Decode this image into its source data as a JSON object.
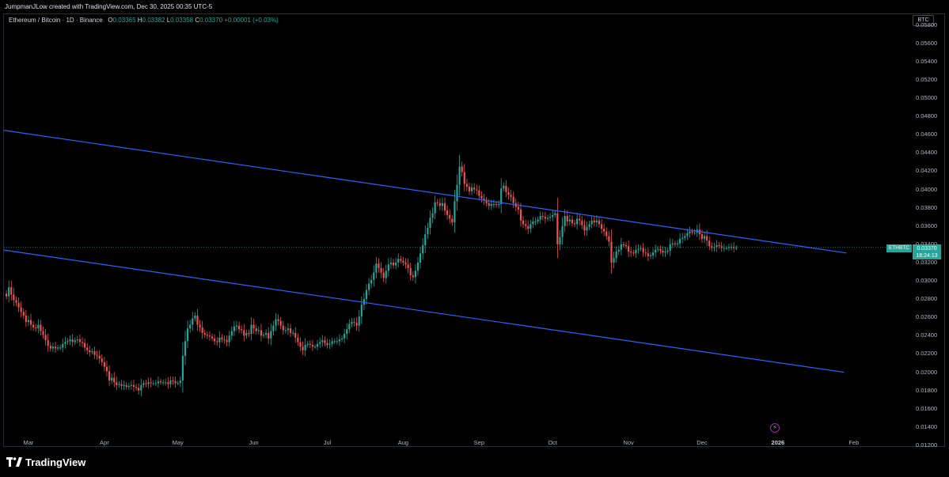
{
  "header": {
    "attribution": "JumpmanJLow created with TradingView.com, Dec 30, 2025 00:35 UTC-5"
  },
  "legend": {
    "symbol": "Ethereum / Bitcoin · 1D · Binance",
    "o_label": "O",
    "o": "0.03365",
    "h_label": "H",
    "h": "0.03382",
    "l_label": "L",
    "l": "0.03358",
    "c_label": "C",
    "c": "0.03370",
    "change": "+0.00001 (+0.03%)"
  },
  "currency_button": "BTC",
  "price_tag": {
    "symbol": "ETHBTC",
    "price": "0.03370",
    "countdown": "18:24:13"
  },
  "brand": {
    "name": "TradingView"
  },
  "colors": {
    "up": "#26a69a",
    "down": "#ef5350",
    "trendline": "#2962ff",
    "background": "#000000",
    "axis_text": "#b2b5be"
  },
  "icons": {
    "bolt": "lightning-icon",
    "logo": "tradingview-logo-icon"
  },
  "chart_data": {
    "type": "candlestick",
    "title": "Ethereum / Bitcoin · 1D · Binance",
    "ylim": [
      0.012,
      0.059
    ],
    "y_ticks": [
      "0.05800",
      "0.05600",
      "0.05400",
      "0.05200",
      "0.05000",
      "0.04800",
      "0.04600",
      "0.04400",
      "0.04200",
      "0.04000",
      "0.03800",
      "0.03600",
      "0.03400",
      "0.03200",
      "0.03000",
      "0.02800",
      "0.02600",
      "0.02400",
      "0.02200",
      "0.02000",
      "0.01800",
      "0.01600",
      "0.01400",
      "0.01200"
    ],
    "x_range": [
      "2025-02-19",
      "2026-02-24"
    ],
    "x_ticks": [
      {
        "label": "Mar",
        "date": "2025-03-01"
      },
      {
        "label": "Apr",
        "date": "2025-04-01"
      },
      {
        "label": "May",
        "date": "2025-05-01"
      },
      {
        "label": "Jun",
        "date": "2025-06-01"
      },
      {
        "label": "Jul",
        "date": "2025-07-01"
      },
      {
        "label": "Aug",
        "date": "2025-08-01"
      },
      {
        "label": "Sep",
        "date": "2025-09-01"
      },
      {
        "label": "Oct",
        "date": "2025-10-01"
      },
      {
        "label": "Nov",
        "date": "2025-11-01"
      },
      {
        "label": "Dec",
        "date": "2025-12-01"
      },
      {
        "label": "2026",
        "date": "2026-01-01",
        "bold": true
      },
      {
        "label": "Feb",
        "date": "2026-02-01"
      }
    ],
    "grid": false,
    "last_price": 0.0337,
    "candles": {
      "start_date": "2025-02-20",
      "interval": "1D",
      "close": [
        0.0283,
        0.0293,
        0.0285,
        0.0279,
        0.0276,
        0.0271,
        0.0266,
        0.0262,
        0.0255,
        0.0257,
        0.0252,
        0.0249,
        0.0248,
        0.0252,
        0.0245,
        0.0241,
        0.0235,
        0.0229,
        0.0226,
        0.0228,
        0.0226,
        0.0227,
        0.0227,
        0.0231,
        0.0233,
        0.0234,
        0.0236,
        0.0233,
        0.0235,
        0.0236,
        0.0233,
        0.0232,
        0.0227,
        0.0224,
        0.0222,
        0.0223,
        0.0219,
        0.0218,
        0.0215,
        0.0211,
        0.0206,
        0.0201,
        0.0191,
        0.0194,
        0.0189,
        0.0186,
        0.0187,
        0.0185,
        0.0186,
        0.0184,
        0.0185,
        0.0186,
        0.0184,
        0.0183,
        0.018,
        0.0186,
        0.0188,
        0.0187,
        0.0189,
        0.0188,
        0.0188,
        0.0188,
        0.019,
        0.0189,
        0.0189,
        0.0189,
        0.0187,
        0.0191,
        0.019,
        0.0188,
        0.0188,
        0.0191,
        0.0218,
        0.0234,
        0.0248,
        0.0252,
        0.0259,
        0.0262,
        0.0252,
        0.0249,
        0.0243,
        0.0241,
        0.024,
        0.0239,
        0.0237,
        0.0234,
        0.0233,
        0.0238,
        0.0236,
        0.0235,
        0.0233,
        0.024,
        0.0245,
        0.025,
        0.0251,
        0.0247,
        0.0246,
        0.024,
        0.0243,
        0.0242,
        0.0252,
        0.0248,
        0.0245,
        0.0246,
        0.024,
        0.0241,
        0.0243,
        0.0237,
        0.0245,
        0.0251,
        0.0258,
        0.0256,
        0.0251,
        0.0246,
        0.0246,
        0.0248,
        0.0243,
        0.0243,
        0.0238,
        0.0233,
        0.0228,
        0.0224,
        0.023,
        0.0231,
        0.023,
        0.0228,
        0.0228,
        0.0231,
        0.0233,
        0.0235,
        0.0232,
        0.023,
        0.0231,
        0.0234,
        0.0234,
        0.0234,
        0.0236,
        0.0237,
        0.0242,
        0.0247,
        0.0253,
        0.0255,
        0.0254,
        0.0251,
        0.0261,
        0.0274,
        0.028,
        0.029,
        0.0297,
        0.0301,
        0.0309,
        0.0319,
        0.0314,
        0.0309,
        0.0303,
        0.0311,
        0.0318,
        0.032,
        0.0317,
        0.032,
        0.0324,
        0.0322,
        0.032,
        0.0318,
        0.0314,
        0.0306,
        0.0304,
        0.0311,
        0.032,
        0.033,
        0.0339,
        0.0351,
        0.0358,
        0.0369,
        0.0374,
        0.0386,
        0.0385,
        0.0382,
        0.0385,
        0.0377,
        0.0372,
        0.0368,
        0.0364,
        0.0387,
        0.0405,
        0.0425,
        0.0419,
        0.0406,
        0.0403,
        0.0398,
        0.0402,
        0.04,
        0.0399,
        0.0393,
        0.039,
        0.0388,
        0.0385,
        0.0382,
        0.0384,
        0.0384,
        0.0383,
        0.0384,
        0.0401,
        0.0404,
        0.0397,
        0.0394,
        0.0392,
        0.0385,
        0.0381,
        0.0378,
        0.0366,
        0.0362,
        0.036,
        0.0357,
        0.0362,
        0.0365,
        0.0365,
        0.0367,
        0.0371,
        0.037,
        0.0368,
        0.0369,
        0.037,
        0.0372,
        0.0374,
        0.034,
        0.0348,
        0.036,
        0.0371,
        0.0365,
        0.0367,
        0.0363,
        0.0362,
        0.0368,
        0.0366,
        0.0361,
        0.0355,
        0.0359,
        0.0362,
        0.0366,
        0.0364,
        0.0366,
        0.0362,
        0.0357,
        0.0354,
        0.0349,
        0.0343,
        0.032,
        0.0325,
        0.0332,
        0.0334,
        0.034,
        0.0339,
        0.0338,
        0.0332,
        0.0331,
        0.033,
        0.0334,
        0.0335,
        0.0336,
        0.0331,
        0.033,
        0.0327,
        0.0328,
        0.0331,
        0.0334,
        0.0335,
        0.0333,
        0.0331,
        0.0332,
        0.0333,
        0.034,
        0.0341,
        0.034,
        0.0341,
        0.0346,
        0.0347,
        0.0349,
        0.0352,
        0.0354,
        0.0353,
        0.0353,
        0.0356,
        0.0351,
        0.0346,
        0.0349,
        0.0344,
        0.0338,
        0.0336,
        0.0337,
        0.0339,
        0.0338,
        0.0336,
        0.0336,
        0.0336,
        0.0337,
        0.0337,
        0.0336,
        0.0336
      ]
    },
    "trendlines": [
      {
        "from": {
          "date": "2025-02-19",
          "price": 0.04647
        },
        "to": {
          "date": "2026-01-29",
          "price": 0.03305
        }
      },
      {
        "from": {
          "date": "2025-02-19",
          "price": 0.03337
        },
        "to": {
          "date": "2026-01-28",
          "price": 0.02
        }
      }
    ],
    "last_price_line": {
      "price": 0.0337,
      "style": "dotted"
    }
  }
}
